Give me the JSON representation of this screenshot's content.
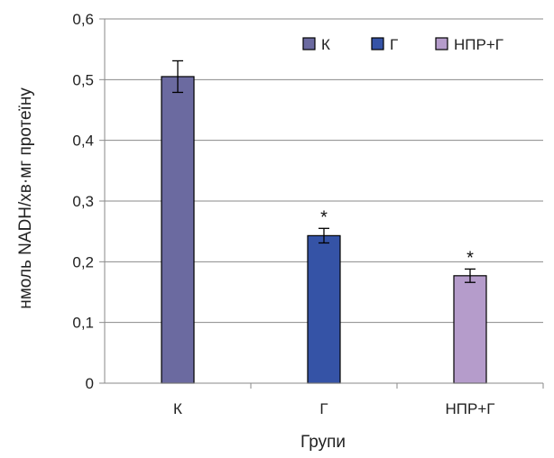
{
  "chart_data": {
    "type": "bar",
    "categories": [
      "К",
      "Г",
      "НПР+Г"
    ],
    "values": [
      0.505,
      0.243,
      0.177
    ],
    "errors": [
      0.026,
      0.012,
      0.011
    ],
    "significance": [
      "",
      "*",
      "*"
    ],
    "colors": [
      "#6b6aa0",
      "#3553a6",
      "#b59ccb"
    ],
    "xlabel": "Групи",
    "ylabel": "нмоль NADH/хв·мг протеїну",
    "ylim": [
      0,
      0.6
    ],
    "yticks": [
      "0",
      "0,1",
      "0,2",
      "0,3",
      "0,4",
      "0,5",
      "0,6"
    ],
    "grid": true,
    "legend": {
      "position": "top-right",
      "entries": [
        "К",
        "Г",
        "НПР+Г"
      ]
    }
  }
}
